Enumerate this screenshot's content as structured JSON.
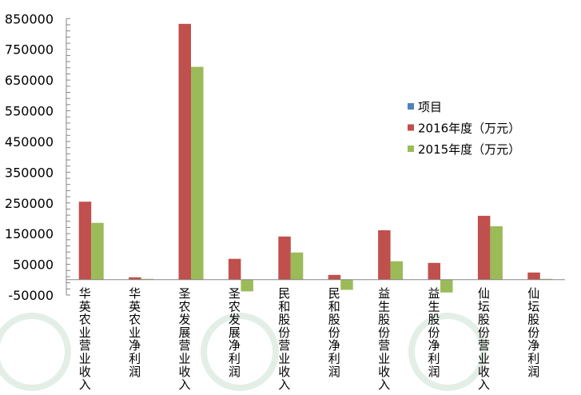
{
  "chart_data": {
    "type": "bar",
    "title": "",
    "xlabel": "",
    "ylabel": "",
    "ylim": [
      -50000,
      850000
    ],
    "yticks": [
      -50000,
      50000,
      150000,
      250000,
      350000,
      450000,
      550000,
      650000,
      750000,
      850000
    ],
    "grid": false,
    "legend_position": "right",
    "categories": [
      "华英农业营业收入",
      "华英农业净利润",
      "圣农发展营业收入",
      "圣农发展净利润",
      "民和股份营业收入",
      "民和股份净利润",
      "益生股份营业收入",
      "益生股份净利润",
      "仙坛股份营业收入",
      "仙坛股份净利润"
    ],
    "series": [
      {
        "name": "项目",
        "color": "#4f81bd",
        "values": [
          null,
          null,
          null,
          null,
          null,
          null,
          null,
          null,
          null,
          null
        ]
      },
      {
        "name": "2016年度（万元）",
        "color": "#c0504d",
        "values": [
          254000,
          7800,
          833000,
          68000,
          140600,
          15600,
          161000,
          54700,
          208000,
          23400
        ]
      },
      {
        "name": "2015年度（万元）",
        "color": "#9bbb59",
        "values": [
          185000,
          2600,
          693000,
          -38000,
          88500,
          -33000,
          60000,
          -41700,
          174000,
          2600
        ]
      }
    ]
  }
}
